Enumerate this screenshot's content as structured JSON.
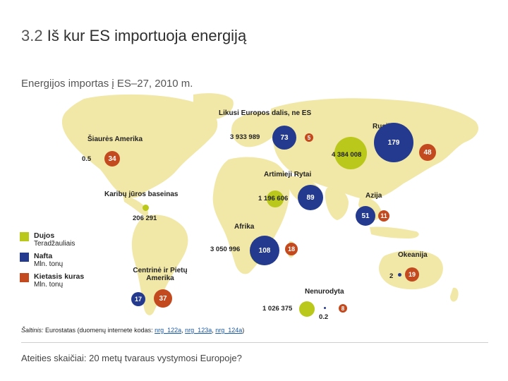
{
  "slide": {
    "title_prefix": "3.2",
    "title": "Iš kur ES importuoja energiją",
    "subtitle": "Energijos importas į ES–27, 2010 m."
  },
  "colors": {
    "gas": "#b9c81b",
    "oil": "#243a8f",
    "coal": "#c24a1e",
    "land": "#f1e7a6"
  },
  "legend": {
    "gas": {
      "name": "Dujos",
      "unit": "Teradžauliais"
    },
    "oil": {
      "name": "Nafta",
      "unit": "Mln. tonų"
    },
    "coal": {
      "name": "Kietasis kuras",
      "unit": "Mln. tonų"
    }
  },
  "regions": {
    "north_america": {
      "label": "Šiaurės Amerika",
      "gas": "0.5",
      "coal": "34"
    },
    "rest_europe": {
      "label": "Likusi Europos dalis, ne ES",
      "gas": "3 933 989",
      "oil": "73",
      "coal": "5"
    },
    "russia": {
      "label": "Rusija",
      "gas": "4 384 008",
      "oil": "179",
      "coal": "48"
    },
    "middle_east": {
      "label": "Artimieji Rytai",
      "gas": "1 196 606",
      "oil": "89"
    },
    "asia": {
      "label": "Azija",
      "oil": "51",
      "coal": "11"
    },
    "caribbean": {
      "label": "Karibų jūros baseinas",
      "gas": "206 291"
    },
    "africa": {
      "label": "Afrika",
      "gas": "3 050 996",
      "oil": "108",
      "coal": "18"
    },
    "oceania": {
      "label": "Okeanija",
      "oil": "2",
      "coal": "19"
    },
    "central_south_america": {
      "label": "Centrinė ir Pietų Amerika",
      "oil": "17",
      "coal": "37"
    },
    "unspecified": {
      "label": "Nenurodyta",
      "gas": "1 026 375",
      "oil": "0.2",
      "coal": "8"
    }
  },
  "source": {
    "prefix": "Šaltinis:",
    "text": " Eurostatas (duomenų internete kodas: ",
    "link1": "nrg_122a",
    "sep1": ", ",
    "link2": "nrg_123a",
    "sep2": ", ",
    "link3": "nrg_124a",
    "suffix": ")"
  },
  "footer": "Ateities skaičiai: 20 metų tvaraus vystymosi Europoje?"
}
